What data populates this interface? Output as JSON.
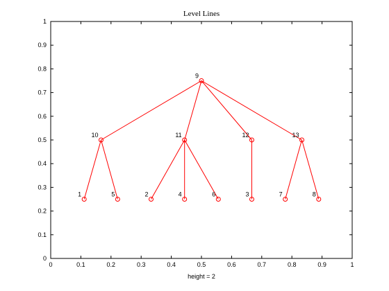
{
  "chart_data": {
    "type": "scatter",
    "title": "Level Lines",
    "xlabel": "height = 2",
    "ylabel": "",
    "xlim": [
      0,
      1
    ],
    "ylim": [
      0,
      1
    ],
    "xticks": [
      "0",
      "0.1",
      "0.2",
      "0.3",
      "0.4",
      "0.5",
      "0.6",
      "0.7",
      "0.8",
      "0.9",
      "1"
    ],
    "yticks": [
      "0",
      "0.1",
      "0.2",
      "0.3",
      "0.4",
      "0.5",
      "0.6",
      "0.7",
      "0.8",
      "0.9",
      "1"
    ],
    "grid": false,
    "series_color": "#ff0000",
    "nodes": [
      {
        "label": "1",
        "x": 0.111,
        "y": 0.25
      },
      {
        "label": "5",
        "x": 0.222,
        "y": 0.25
      },
      {
        "label": "2",
        "x": 0.333,
        "y": 0.25
      },
      {
        "label": "4",
        "x": 0.444,
        "y": 0.25
      },
      {
        "label": "6",
        "x": 0.556,
        "y": 0.25
      },
      {
        "label": "3",
        "x": 0.667,
        "y": 0.25
      },
      {
        "label": "7",
        "x": 0.778,
        "y": 0.25
      },
      {
        "label": "8",
        "x": 0.889,
        "y": 0.25
      },
      {
        "label": "10",
        "x": 0.167,
        "y": 0.5
      },
      {
        "label": "11",
        "x": 0.444,
        "y": 0.5
      },
      {
        "label": "12",
        "x": 0.667,
        "y": 0.5
      },
      {
        "label": "13",
        "x": 0.833,
        "y": 0.5
      },
      {
        "label": "9",
        "x": 0.5,
        "y": 0.75
      }
    ],
    "edges": [
      [
        "9",
        "10"
      ],
      [
        "9",
        "11"
      ],
      [
        "9",
        "12"
      ],
      [
        "9",
        "13"
      ],
      [
        "10",
        "1"
      ],
      [
        "10",
        "5"
      ],
      [
        "11",
        "2"
      ],
      [
        "11",
        "4"
      ],
      [
        "11",
        "6"
      ],
      [
        "12",
        "3"
      ],
      [
        "13",
        "7"
      ],
      [
        "13",
        "8"
      ]
    ]
  }
}
